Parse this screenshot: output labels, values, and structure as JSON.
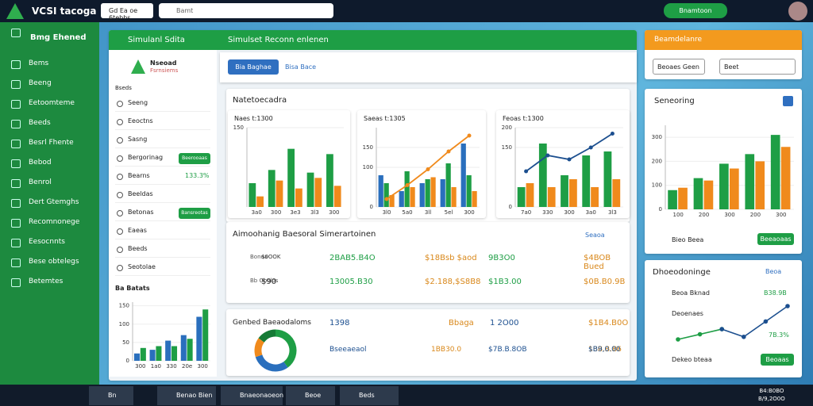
{
  "top": {
    "brand": "VCSI tacoga",
    "tab": "Gd Ea oe 6tebbs",
    "search": "Bamt",
    "button": "Bnamtoon"
  },
  "sidebar": {
    "title": "Bmg Ehened",
    "items": [
      "Bems",
      "Beeng",
      "Eetoomteme",
      "Beeds",
      "Besrl Fhente",
      "Bebod",
      "Benrol",
      "Dert Gtemghs",
      "Recomnonege",
      "Eesocnnts",
      "Bese obtelegs",
      "Betemtes"
    ]
  },
  "panel": {
    "title": "Simulanl Sdita",
    "subtitle": "Simulset Reconn enlenen",
    "logo_title": "Nseoad",
    "logo_sub": "Fsrnsiems",
    "button_primary": "Bia Baghae",
    "button_link": "Bisa Bace"
  },
  "list": {
    "section": "Bseds",
    "items": [
      {
        "label": "Seeng"
      },
      {
        "label": "Eeoctns"
      },
      {
        "label": "Sasng"
      },
      {
        "label": "Bergorinag",
        "badge": "Beerooaas"
      },
      {
        "label": "Bearns",
        "status": "133.3%"
      },
      {
        "label": "Beeldas"
      },
      {
        "label": "Betonas",
        "badge": "Bansreotas"
      },
      {
        "label": "Eaeas"
      },
      {
        "label": "Beeds"
      },
      {
        "label": "Seotolae"
      }
    ],
    "footer": "Ba Batats"
  },
  "analytics": {
    "title": "Natetoecadra"
  },
  "simulation": {
    "title": "Aimoohanig Baesoral Simerartoinen",
    "link": "Seaoa",
    "rows": [
      [
        "Bonoa",
        "$0OOK",
        "2BAB5.B4O",
        "$18Bsb $aod",
        "9B3O0",
        "$4BOB Bued"
      ],
      [
        "Bb Ooolos",
        "$90",
        "13005.B30",
        "$2.188,$S8B8",
        "$1B3.00",
        "$0B.B0.9B"
      ]
    ]
  },
  "summary": {
    "title": "Genbed Baeaodaloms",
    "rows": [
      [
        "1398",
        "Bbaga",
        "1 2O00",
        "$1B4.B0O"
      ],
      [
        "Bseeaeaol",
        "1BB30.0",
        "$7B.B.8OB",
        "1BB.B.B6",
        "$B9,0.00"
      ]
    ]
  },
  "right": {
    "title": "Beamdelanre",
    "select1": "Beoaes Geen",
    "select2": "Beet",
    "chart_title": "Seneoring",
    "footer": "Bieo Beea",
    "button": "Beeaoaas"
  },
  "right2": {
    "title": "Dhoeodoninge",
    "link": "Beoa",
    "rows": [
      "Beoa Bknad",
      "Deoenaes",
      "Dekeo bteaa"
    ],
    "status": "7B.3%",
    "value": "B38.9B",
    "button": "Beoaas"
  },
  "taskbar": [
    "Bn",
    "Benao Bien",
    "Bnaeonaoeon",
    "Beoe",
    "Beds"
  ],
  "clock": [
    "B4:B0BO",
    "B/9,2O0O"
  ],
  "chart_data": [
    {
      "type": "bar",
      "title": "Naes t:1300",
      "categories": [
        "3a0",
        "300",
        "3e3",
        "3l3",
        "300"
      ],
      "ylim": [
        0,
        150
      ],
      "yticks": [
        150
      ],
      "series": [
        {
          "color": "#1e9e45",
          "values": [
            45,
            70,
            110,
            65,
            100
          ]
        },
        {
          "color": "#f08a1c",
          "values": [
            20,
            50,
            35,
            55,
            40
          ]
        }
      ]
    },
    {
      "type": "bar",
      "title": "Saeas t:1305",
      "categories": [
        "3l0",
        "5a0",
        "3ll",
        "5el",
        "300"
      ],
      "ylim": [
        0,
        200
      ],
      "yticks": [
        0,
        100,
        150
      ],
      "series": [
        {
          "color": "#2a6fbd",
          "values": [
            80,
            40,
            60,
            70,
            160
          ]
        },
        {
          "color": "#1e9e45",
          "values": [
            60,
            90,
            70,
            110,
            80
          ]
        },
        {
          "color": "#f08a1c",
          "values": [
            30,
            50,
            75,
            50,
            40
          ]
        },
        {
          "type": "line",
          "color": "#f08a1c",
          "values": [
            20,
            55,
            95,
            140,
            180
          ]
        }
      ]
    },
    {
      "type": "bar",
      "title": "Feoas t:1300",
      "categories": [
        "7a0",
        "330",
        "300",
        "3a0",
        "3l3"
      ],
      "ylim": [
        0,
        200
      ],
      "yticks": [
        0,
        150,
        200
      ],
      "series": [
        {
          "color": "#1e9e45",
          "values": [
            50,
            160,
            80,
            130,
            140
          ]
        },
        {
          "color": "#f08a1c",
          "values": [
            60,
            50,
            70,
            50,
            70
          ]
        },
        {
          "type": "line",
          "color": "#1c4f8f",
          "values": [
            90,
            130,
            120,
            150,
            185
          ]
        }
      ]
    },
    {
      "type": "bar",
      "categories": [
        "300",
        "1a0",
        "330",
        "20e",
        "300"
      ],
      "ylim": [
        0,
        160
      ],
      "yticks": [
        0,
        50,
        100,
        150
      ],
      "series": [
        {
          "color": "#2a6fbd",
          "values": [
            20,
            30,
            55,
            70,
            120
          ]
        },
        {
          "color": "#1e9e45",
          "values": [
            35,
            40,
            40,
            60,
            140
          ]
        }
      ]
    },
    {
      "type": "bar",
      "categories": [
        "100",
        "200",
        "300",
        "200",
        "300"
      ],
      "ylim": [
        0,
        350
      ],
      "yticks": [
        0,
        100,
        200,
        300
      ],
      "series": [
        {
          "color": "#1e9e45",
          "values": [
            80,
            130,
            190,
            230,
            310
          ]
        },
        {
          "color": "#f08a1c",
          "values": [
            90,
            120,
            170,
            200,
            260
          ]
        }
      ]
    },
    {
      "type": "pie",
      "values": [
        40,
        30,
        15,
        15
      ],
      "colors": [
        "#1e9e45",
        "#2a6fbd",
        "#f08a1c",
        "#157a35"
      ]
    },
    {
      "type": "line",
      "categories": [
        null,
        null,
        null,
        null,
        null,
        null
      ],
      "series": [
        {
          "color": "#1e9e45",
          "values": [
            10,
            20,
            30,
            null,
            null,
            null
          ]
        },
        {
          "color": "#1c4f8f",
          "values": [
            null,
            null,
            30,
            15,
            45,
            75
          ]
        }
      ]
    }
  ]
}
